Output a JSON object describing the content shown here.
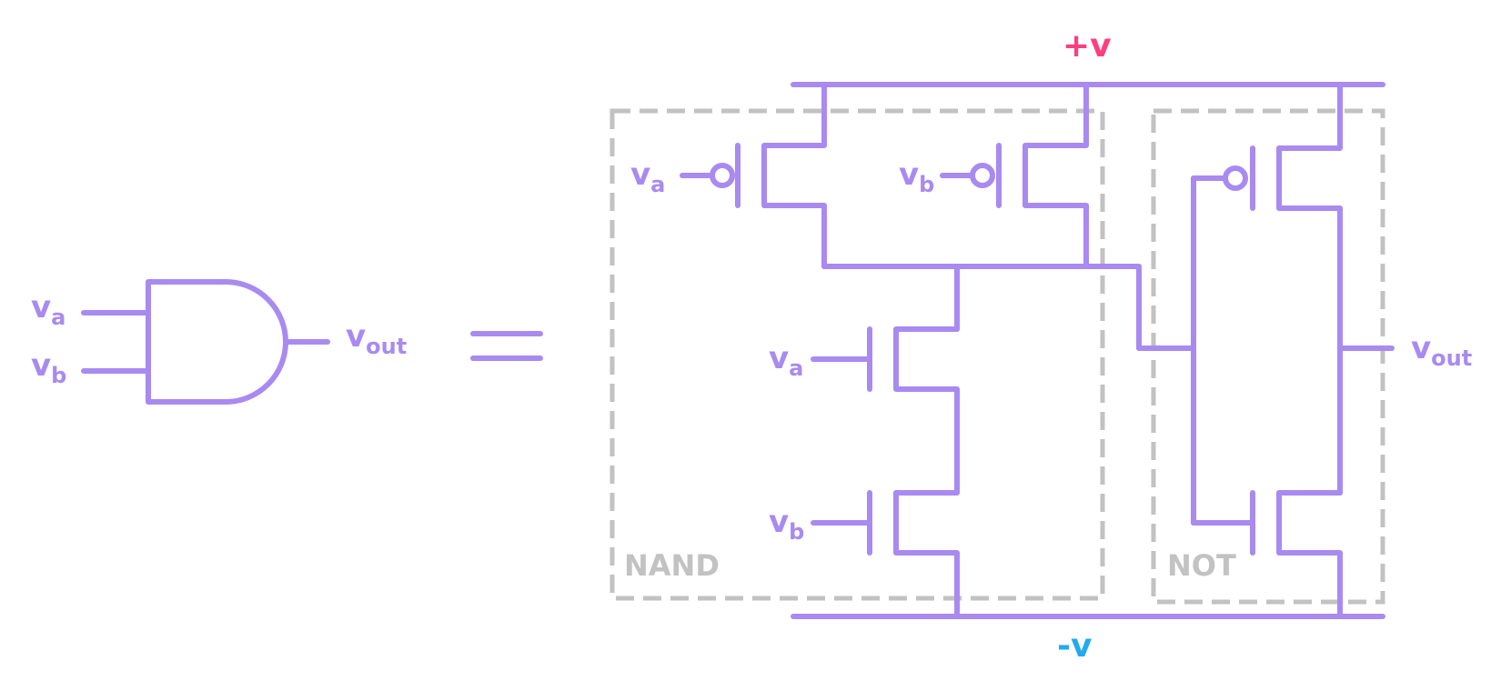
{
  "colors": {
    "wire": "#a98af0",
    "box": "#c2c2c2",
    "positive_rail": "#ff3d7f",
    "negative_rail": "#22aaf0"
  },
  "and_gate": {
    "input_a": {
      "main": "v",
      "sub": "a"
    },
    "input_b": {
      "main": "v",
      "sub": "b"
    },
    "output": {
      "main": "v",
      "sub": "out"
    }
  },
  "equals_sign": "=",
  "circuit": {
    "positive_rail_label": "+v",
    "negative_rail_label": "-v",
    "nand_box_label": "NAND",
    "not_box_label": "NOT",
    "pmos_a_input": {
      "main": "v",
      "sub": "a"
    },
    "pmos_b_input": {
      "main": "v",
      "sub": "b"
    },
    "nmos_a_input": {
      "main": "v",
      "sub": "a"
    },
    "nmos_b_input": {
      "main": "v",
      "sub": "b"
    },
    "output": {
      "main": "v",
      "sub": "out"
    }
  }
}
